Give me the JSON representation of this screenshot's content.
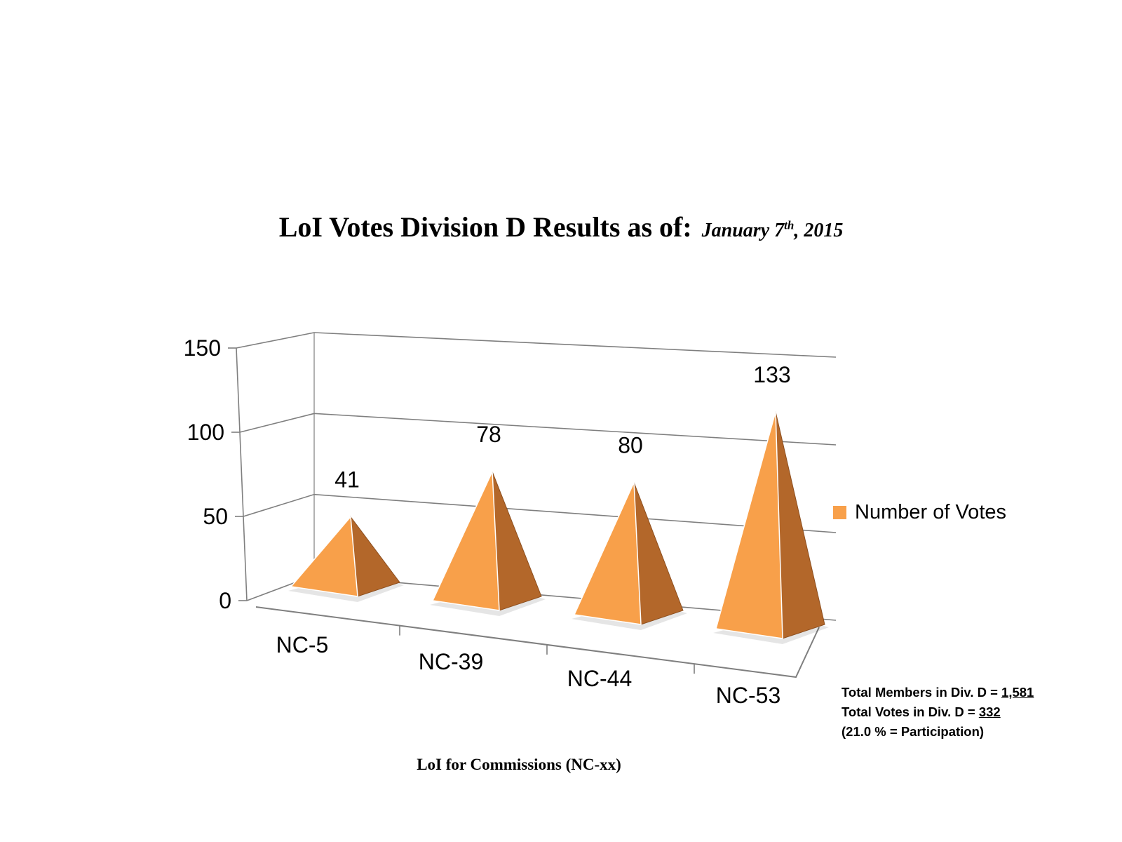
{
  "title": {
    "main": "LoI Votes Division D Results as of:",
    "date_month": "January 7",
    "date_suffix": "th",
    "date_year": ", 2015"
  },
  "legend": {
    "label": "Number of Votes"
  },
  "stats": {
    "members_label": "Total Members in Div. D = ",
    "members_value": "1,581",
    "votes_label": "Total Votes in Div. D = ",
    "votes_value": "332",
    "participation": "(21.0 % = Participation)"
  },
  "chart_data": {
    "type": "bar",
    "style": "3d-pyramid",
    "title": "LoI Votes Division D Results as of: January 7th, 2015",
    "xlabel": "LoI for Commissions (NC-xx)",
    "ylabel": "",
    "categories": [
      "NC-5",
      "NC-39",
      "NC-44",
      "NC-53"
    ],
    "series": [
      {
        "name": "Number of Votes",
        "values": [
          41,
          78,
          80,
          133
        ]
      }
    ],
    "ylim": [
      0,
      150
    ],
    "yticks": [
      0,
      50,
      100,
      150
    ],
    "grid": true,
    "legend_position": "right",
    "colors": {
      "front": "#f8a04a",
      "side": "#b3672a",
      "grid": "#7f7f7f"
    }
  }
}
